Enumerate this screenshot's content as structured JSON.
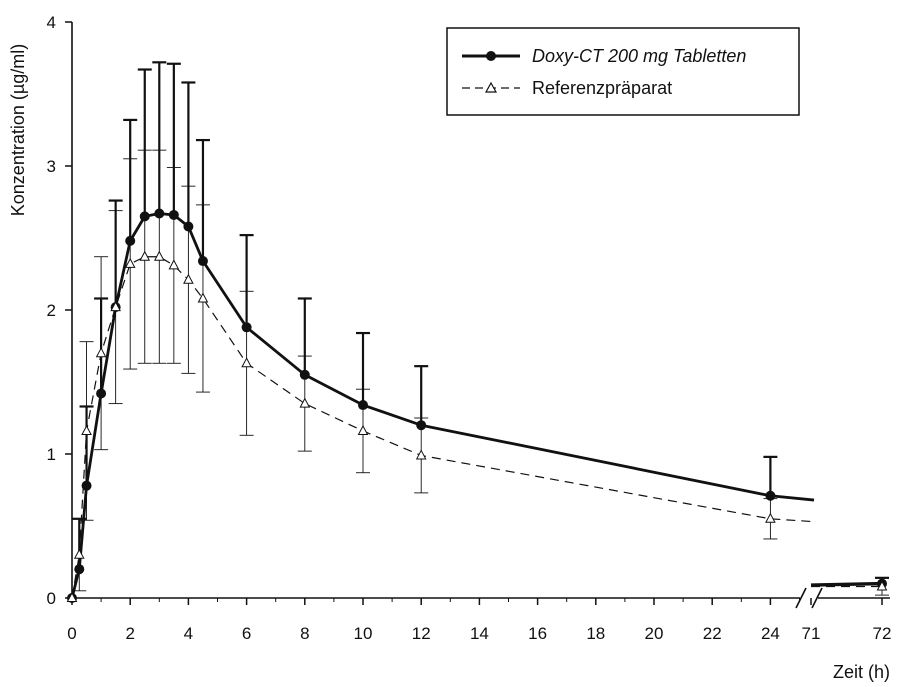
{
  "chart_data": {
    "type": "line",
    "ylabel": "Konzentration (µg/ml)",
    "xlabel": "Zeit (h)",
    "ylim": [
      0,
      4
    ],
    "yticks": [
      "0",
      "1",
      "2",
      "3",
      "4"
    ],
    "xticks": [
      "0",
      "2",
      "4",
      "6",
      "8",
      "10",
      "12",
      "14",
      "16",
      "18",
      "20",
      "22",
      "24",
      "71",
      "72"
    ],
    "axis_break": "between 24 and 71",
    "grid": false,
    "legend_position": "top-right",
    "series": [
      {
        "name": "Doxy-CT 200 mg Tabletten",
        "style": "solid",
        "marker": "filled-circle",
        "x": [
          0,
          0.25,
          0.5,
          1,
          1.5,
          2,
          2.5,
          3,
          3.5,
          4,
          4.5,
          6,
          8,
          10,
          12,
          24,
          72
        ],
        "y": [
          0,
          0.2,
          0.78,
          1.42,
          2.02,
          2.48,
          2.65,
          2.67,
          2.66,
          2.58,
          2.34,
          1.88,
          1.55,
          1.34,
          1.2,
          0.71,
          0.1
        ],
        "error": [
          0,
          0.35,
          0.55,
          0.66,
          0.74,
          0.84,
          1.02,
          1.05,
          1.05,
          1.0,
          0.84,
          0.64,
          0.53,
          0.5,
          0.41,
          0.27,
          0.04
        ],
        "tail": [
          {
            "x": 25.5,
            "y": 0.68
          },
          {
            "x": 71,
            "y": 0.09
          }
        ]
      },
      {
        "name": "Referenzpräparat",
        "style": "dashed",
        "marker": "open-triangle",
        "x": [
          0,
          0.25,
          0.5,
          1,
          1.5,
          2,
          2.5,
          3,
          3.5,
          4,
          4.5,
          6,
          8,
          10,
          12,
          24,
          72
        ],
        "y": [
          0,
          0.3,
          1.16,
          1.7,
          2.02,
          2.32,
          2.37,
          2.37,
          2.31,
          2.21,
          2.08,
          1.63,
          1.35,
          1.16,
          0.99,
          0.55,
          0.08
        ],
        "error": [
          0,
          0.25,
          0.62,
          0.67,
          0.67,
          0.73,
          0.74,
          0.74,
          0.68,
          0.65,
          0.65,
          0.5,
          0.33,
          0.29,
          0.26,
          0.14,
          0.06
        ],
        "tail": [
          {
            "x": 25.5,
            "y": 0.53
          },
          {
            "x": 71,
            "y": 0.08
          }
        ]
      }
    ]
  }
}
